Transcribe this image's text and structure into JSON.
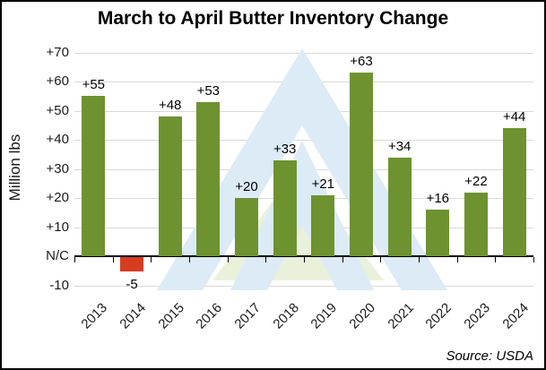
{
  "title": "March to April Butter Inventory Change",
  "y_axis": {
    "label": "Million lbs",
    "tick_labels": [
      "+70",
      "+60",
      "+50",
      "+40",
      "+30",
      "+20",
      "+10",
      "N/C",
      "-10"
    ],
    "tick_values": [
      70,
      60,
      50,
      40,
      30,
      20,
      10,
      0,
      -10
    ]
  },
  "source": "Source: USDA",
  "colors": {
    "bar_positive": "#6E9230",
    "bar_negative": "#D63C20",
    "gridline": "#D9D9D9",
    "axis": "#000000",
    "watermark_blue": "#DCEBF6",
    "watermark_green": "#EAF1DB"
  },
  "chart_data": {
    "type": "bar",
    "title": "March to April Butter Inventory Change",
    "categories": [
      "2013",
      "2014",
      "2015",
      "2016",
      "2017",
      "2018",
      "2019",
      "2020",
      "2021",
      "2022",
      "2023",
      "2024"
    ],
    "values": [
      55,
      -5,
      48,
      53,
      20,
      33,
      21,
      63,
      34,
      16,
      22,
      44
    ],
    "bar_labels": [
      "+55",
      "-5",
      "+48",
      "+53",
      "+20",
      "+33",
      "+21",
      "+63",
      "+34",
      "+16",
      "+22",
      "+44"
    ],
    "xlabel": "",
    "ylabel": "Million lbs",
    "ylim": [
      -10,
      70
    ],
    "ytick_step": 10,
    "zero_tick_label": "N/C",
    "grid": true,
    "legend": "none",
    "negative_color_category": "2014",
    "source": "Source: USDA"
  }
}
